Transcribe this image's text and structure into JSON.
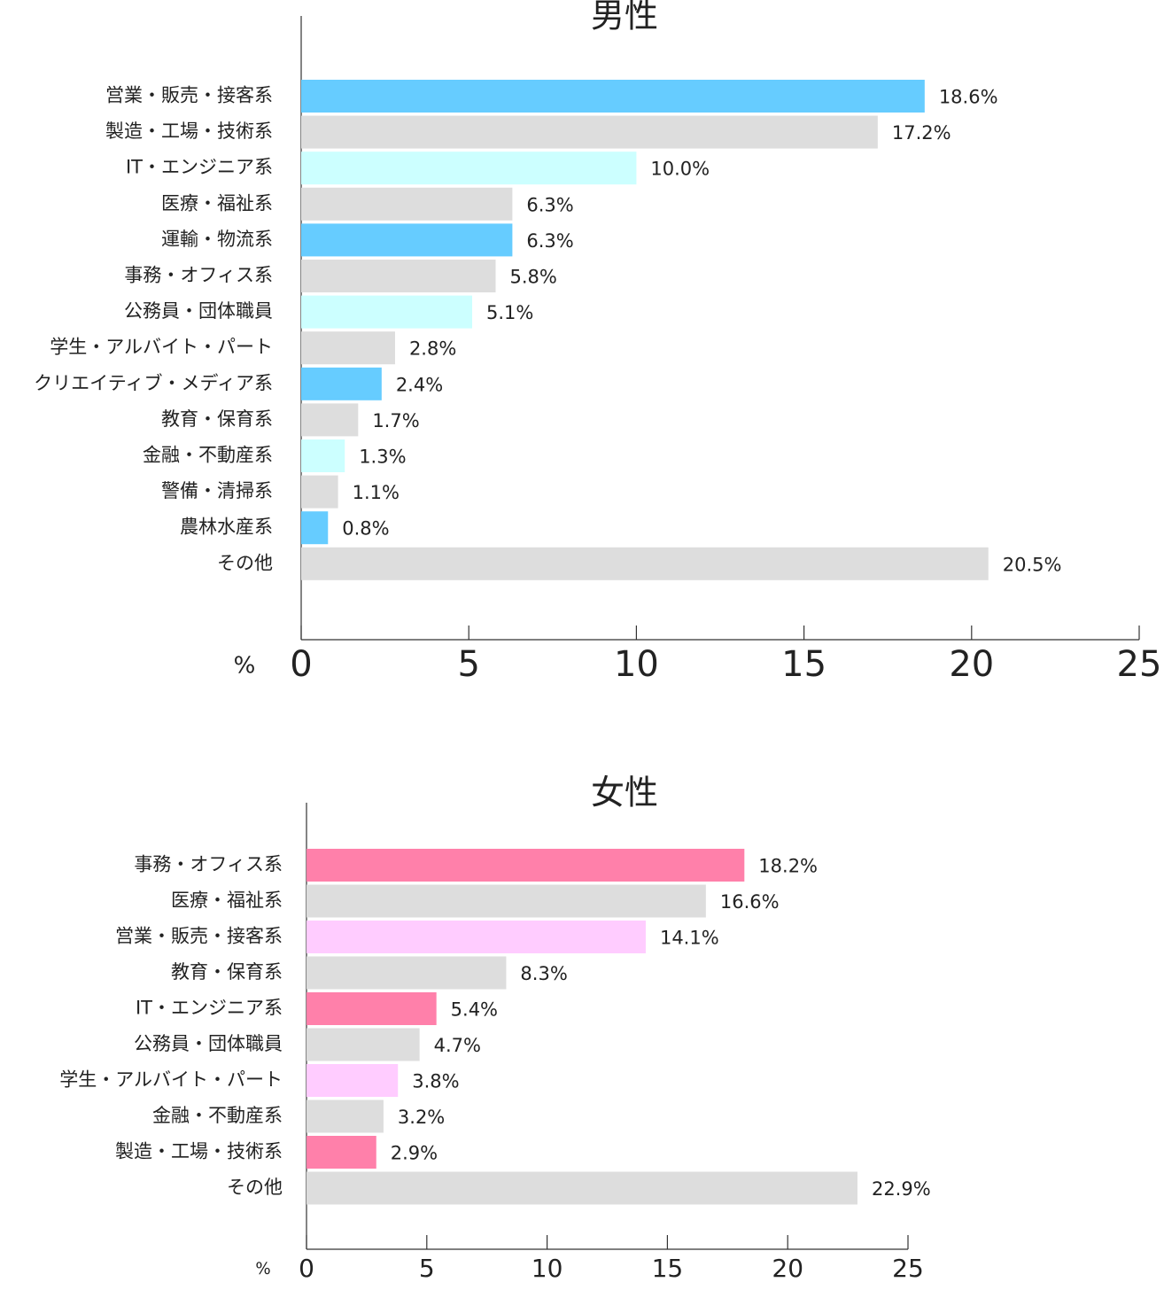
{
  "chart_data": [
    {
      "type": "bar",
      "orientation": "horizontal",
      "title": "男性",
      "xlabel": "%",
      "categories": [
        "営業・販売・接客系",
        "製造・工場・技術系",
        "IT・エンジニア系",
        "医療・福祉系",
        "運輸・物流系",
        "事務・オフィス系",
        "公務員・団体職員",
        "学生・アルバイト・パート",
        "クリエイティブ・メディア系",
        "教育・保育系",
        "金融・不動産系",
        "警備・清掃系",
        "農林水産系",
        "その他"
      ],
      "values": [
        18.6,
        17.2,
        10.0,
        6.3,
        6.3,
        5.8,
        5.1,
        2.8,
        2.4,
        1.7,
        1.3,
        1.1,
        0.8,
        20.5
      ],
      "value_labels": [
        "18.6%",
        "17.2%",
        "10.0%",
        "6.3%",
        "6.3%",
        "5.8%",
        "5.1%",
        "2.8%",
        "2.4%",
        "1.7%",
        "1.3%",
        "1.1%",
        "0.8%",
        "20.5%"
      ],
      "colors": [
        "#66ccff",
        "#dddddd",
        "#ccffff",
        "#dddddd",
        "#66ccff",
        "#dddddd",
        "#ccffff",
        "#dddddd",
        "#66ccff",
        "#dddddd",
        "#ccffff",
        "#dddddd",
        "#66ccff",
        "#dddddd"
      ],
      "xlim": [
        0,
        25
      ],
      "xticks": [
        0,
        5,
        10,
        15,
        20,
        25
      ]
    },
    {
      "type": "bar",
      "orientation": "horizontal",
      "title": "女性",
      "xlabel": "%",
      "categories": [
        "事務・オフィス系",
        "医療・福祉系",
        "営業・販売・接客系",
        "教育・保育系",
        "IT・エンジニア系",
        "公務員・団体職員",
        "学生・アルバイト・パート",
        "金融・不動産系",
        "製造・工場・技術系",
        "その他"
      ],
      "values": [
        18.2,
        16.6,
        14.1,
        8.3,
        5.4,
        4.7,
        3.8,
        3.2,
        2.9,
        22.9
      ],
      "value_labels": [
        "18.2%",
        "16.6%",
        "14.1%",
        "8.3%",
        "5.4%",
        "4.7%",
        "3.8%",
        "3.2%",
        "2.9%",
        "22.9%"
      ],
      "colors": [
        "#ff80aa",
        "#dddddd",
        "#ffccff",
        "#dddddd",
        "#ff80aa",
        "#dddddd",
        "#ffccff",
        "#dddddd",
        "#ff80aa",
        "#dddddd"
      ],
      "xlim": [
        0,
        25
      ],
      "xticks": [
        0,
        5,
        10,
        15,
        20,
        25
      ]
    }
  ]
}
